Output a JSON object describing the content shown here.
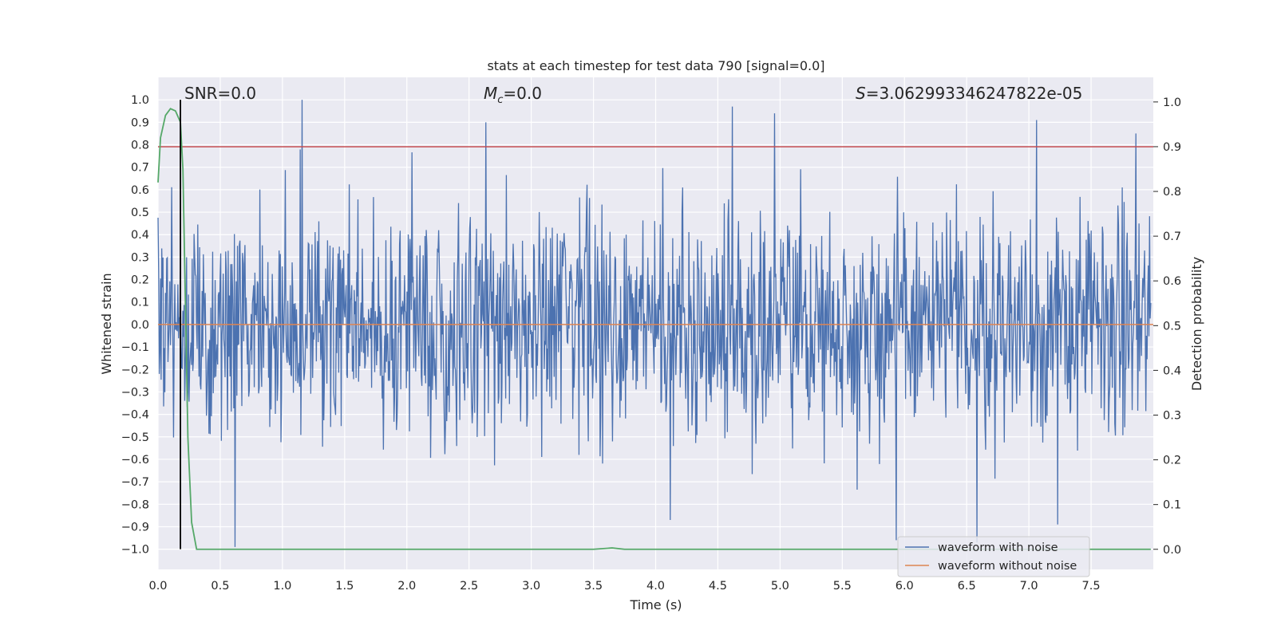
{
  "chart_data": {
    "type": "line",
    "title": "stats at each timestep for test data 790 [signal=0.0]",
    "xlabel": "Time (s)",
    "ylabel_left": "Whitened strain",
    "ylabel_right": "Detection probability",
    "xlim": [
      0.0,
      8.0
    ],
    "ylim_left": [
      -1.09,
      1.1
    ],
    "ylim_right": [
      -0.045,
      1.055
    ],
    "x_ticks": [
      "0.0",
      "0.5",
      "1.0",
      "1.5",
      "2.0",
      "2.5",
      "3.0",
      "3.5",
      "4.0",
      "4.5",
      "5.0",
      "5.5",
      "6.0",
      "6.5",
      "7.0",
      "7.5"
    ],
    "y_left_ticks": [
      "1.0",
      "0.9",
      "0.8",
      "0.7",
      "0.6",
      "0.5",
      "0.4",
      "0.3",
      "0.2",
      "0.1",
      "0.0",
      "−0.1",
      "−0.2",
      "−0.3",
      "−0.4",
      "−0.5",
      "−0.6",
      "−0.7",
      "−0.8",
      "−0.9",
      "−1.0"
    ],
    "y_right_ticks": [
      "1.0",
      "0.9",
      "0.8",
      "0.7",
      "0.6",
      "0.5",
      "0.4",
      "0.3",
      "0.2",
      "0.1",
      "0.0"
    ],
    "grid": true,
    "legend_position": "lower-right",
    "annotations": {
      "snr": "SNR=0.0",
      "mc_symbol": "M",
      "mc_sub": "c",
      "mc_value": "=0.0",
      "s_symbol": "S",
      "s_value": "=3.062993346247822e-05"
    },
    "series": [
      {
        "name": "waveform with noise",
        "axis": "left",
        "color": "#4c72b0",
        "kind": "dense noise",
        "envelope": {
          "typical_abs": 0.45,
          "max": 1.0,
          "min": -0.99
        },
        "peaks": [
          {
            "x": 1.16,
            "y": 1.0
          },
          {
            "x": 2.64,
            "y": 0.9
          },
          {
            "x": 4.63,
            "y": 0.97
          },
          {
            "x": 4.97,
            "y": 0.94
          },
          {
            "x": 7.08,
            "y": 0.91
          },
          {
            "x": 7.88,
            "y": 0.85
          },
          {
            "x": 0.62,
            "y": -0.99
          },
          {
            "x": 5.95,
            "y": -0.96
          },
          {
            "x": 6.6,
            "y": -0.97
          },
          {
            "x": 7.25,
            "y": -0.89
          },
          {
            "x": 4.13,
            "y": -0.87
          }
        ]
      },
      {
        "name": "waveform without noise",
        "axis": "left",
        "color": "#dd8452",
        "x": [
          0.0,
          8.0
        ],
        "y": [
          0.0,
          0.0
        ]
      },
      {
        "name": "",
        "axis": "right",
        "color": "#55a868",
        "x": [
          0.0,
          0.02,
          0.06,
          0.1,
          0.14,
          0.18,
          0.2,
          0.24,
          0.27,
          0.31,
          0.5,
          3.5,
          3.65,
          3.75,
          7.98
        ],
        "y": [
          0.82,
          0.92,
          0.97,
          0.985,
          0.98,
          0.955,
          0.85,
          0.25,
          0.06,
          0.0,
          0.0,
          0.0,
          0.003,
          0.0,
          0.0
        ]
      }
    ],
    "threshold": {
      "axis": "right",
      "value": 0.9,
      "color": "#c44e52"
    },
    "marker_line": {
      "x": 0.18,
      "ymin": -1.0,
      "ymax": 1.0,
      "color": "#000000"
    }
  }
}
